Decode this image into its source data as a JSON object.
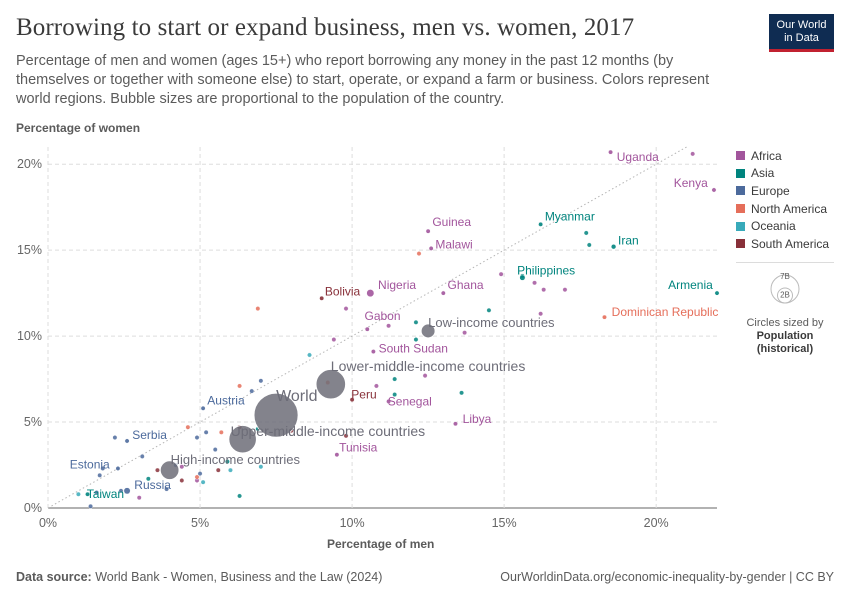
{
  "header": {
    "title": "Borrowing to start or expand business, men vs. women, 2017",
    "subtitle": "Percentage of men and women (ages 15+) who report borrowing any money in the past 12 months (by themselves or together with someone else) to start, operate, or expand a farm or business. Colors represent world regions. Bubble sizes are proportional to the population of the country.",
    "logo_line1": "Our World",
    "logo_line2": "in Data"
  },
  "colors": {
    "Africa": "#a2559c",
    "Asia": "#00847e",
    "Europe": "#4c6a9c",
    "North America": "#e56e5a",
    "Oceania": "#38aaba",
    "South America": "#883039",
    "Aggregate": "#6d6d78",
    "grid": "#dddddd",
    "axis": "#666666"
  },
  "legend": {
    "regions": [
      "Africa",
      "Asia",
      "Europe",
      "North America",
      "Oceania",
      "South America"
    ],
    "size_key_large": "7B",
    "size_key_small": "2B",
    "size_caption_1": "Circles sized by",
    "size_caption_2": "Population",
    "size_caption_3": "(historical)"
  },
  "footer": {
    "source_label": "Data source:",
    "source_text": "World Bank - Women, Business and the Law (2024)",
    "url": "OurWorldinData.org/economic-inequality-by-gender | CC BY"
  },
  "chart_data": {
    "type": "scatter",
    "title": "Borrowing to start or expand business, men vs. women, 2017",
    "xlabel": "Percentage of men",
    "ylabel": "Percentage of women",
    "xlim": [
      0,
      22
    ],
    "ylim": [
      0,
      21
    ],
    "xticks": [
      0,
      5,
      10,
      15,
      20
    ],
    "yticks": [
      0,
      5,
      10,
      15,
      20
    ],
    "xtick_labels": [
      "0%",
      "5%",
      "10%",
      "15%",
      "20%"
    ],
    "ytick_labels": [
      "0%",
      "5%",
      "10%",
      "15%",
      "20%"
    ],
    "reference_line": "y = x",
    "grid": true,
    "legend_position": "right",
    "labeled_points": [
      {
        "label": "Uganda",
        "region": "Africa",
        "x": 18.5,
        "y": 20.7,
        "pop": 0.04
      },
      {
        "label": "Kenya",
        "region": "Africa",
        "x": 21.9,
        "y": 18.5,
        "pop": 0.05
      },
      {
        "label": "Guinea",
        "region": "Africa",
        "x": 12.5,
        "y": 16.1,
        "pop": 0.012
      },
      {
        "label": "Malawi",
        "region": "Africa",
        "x": 12.6,
        "y": 15.1,
        "pop": 0.018
      },
      {
        "label": "Myanmar",
        "region": "Asia",
        "x": 16.2,
        "y": 16.5,
        "pop": 0.053
      },
      {
        "label": "Iran",
        "region": "Asia",
        "x": 18.6,
        "y": 15.2,
        "pop": 0.08
      },
      {
        "label": "Philippines",
        "region": "Asia",
        "x": 15.6,
        "y": 13.4,
        "pop": 0.105
      },
      {
        "label": "Armenia",
        "region": "Asia",
        "x": 22.0,
        "y": 12.5,
        "pop": 0.003
      },
      {
        "label": "Ghana",
        "region": "Africa",
        "x": 13.0,
        "y": 12.5,
        "pop": 0.029
      },
      {
        "label": "Nigeria",
        "region": "Africa",
        "x": 10.6,
        "y": 12.5,
        "pop": 0.19
      },
      {
        "label": "Bolivia",
        "region": "South America",
        "x": 9.0,
        "y": 12.2,
        "pop": 0.011
      },
      {
        "label": "Dominican Republic",
        "region": "North America",
        "x": 18.3,
        "y": 11.1,
        "pop": 0.011
      },
      {
        "label": "Gabon",
        "region": "Africa",
        "x": 10.5,
        "y": 10.4,
        "pop": 0.002
      },
      {
        "label": "South Sudan",
        "region": "Africa",
        "x": 10.7,
        "y": 9.1,
        "pop": 0.011
      },
      {
        "label": "Peru",
        "region": "South America",
        "x": 10.0,
        "y": 6.3,
        "pop": 0.032
      },
      {
        "label": "Senegal",
        "region": "Africa",
        "x": 11.2,
        "y": 6.2,
        "pop": 0.015
      },
      {
        "label": "Libya",
        "region": "Africa",
        "x": 13.4,
        "y": 4.9,
        "pop": 0.006
      },
      {
        "label": "Tunisia",
        "region": "Africa",
        "x": 9.5,
        "y": 3.1,
        "pop": 0.011
      },
      {
        "label": "Austria",
        "region": "Europe",
        "x": 5.1,
        "y": 5.8,
        "pop": 0.009
      },
      {
        "label": "Serbia",
        "region": "Europe",
        "x": 2.6,
        "y": 3.9,
        "pop": 0.007
      },
      {
        "label": "Estonia",
        "region": "Europe",
        "x": 2.3,
        "y": 2.3,
        "pop": 0.001
      },
      {
        "label": "Russia",
        "region": "Europe",
        "x": 2.6,
        "y": 1.0,
        "pop": 0.144
      },
      {
        "label": "Taiwan",
        "region": "Asia",
        "x": 1.3,
        "y": 0.8,
        "pop": 0.024
      }
    ],
    "aggregates": [
      {
        "label": "World",
        "x": 7.5,
        "y": 5.4,
        "pop": 7.5
      },
      {
        "label": "Lower-middle-income countries",
        "x": 9.3,
        "y": 7.2,
        "pop": 3.0
      },
      {
        "label": "Upper-middle-income countries",
        "x": 6.4,
        "y": 4.0,
        "pop": 2.6
      },
      {
        "label": "Low-income countries",
        "x": 12.5,
        "y": 10.3,
        "pop": 0.66
      },
      {
        "label": "High-income countries",
        "x": 4.0,
        "y": 2.2,
        "pop": 1.2
      }
    ],
    "other_points": [
      {
        "region": "Africa",
        "x": 21.2,
        "y": 20.6,
        "pop": 0.01
      },
      {
        "region": "Africa",
        "x": 14.9,
        "y": 13.6,
        "pop": 0.01
      },
      {
        "region": "Africa",
        "x": 16.0,
        "y": 13.1,
        "pop": 0.01
      },
      {
        "region": "Africa",
        "x": 16.3,
        "y": 12.7,
        "pop": 0.01
      },
      {
        "region": "Africa",
        "x": 17.0,
        "y": 12.7,
        "pop": 0.01
      },
      {
        "region": "Africa",
        "x": 16.2,
        "y": 11.3,
        "pop": 0.01
      },
      {
        "region": "Africa",
        "x": 9.8,
        "y": 11.6,
        "pop": 0.01
      },
      {
        "region": "Africa",
        "x": 11.2,
        "y": 10.6,
        "pop": 0.01
      },
      {
        "region": "Africa",
        "x": 13.7,
        "y": 10.2,
        "pop": 0.01
      },
      {
        "region": "Africa",
        "x": 9.4,
        "y": 9.8,
        "pop": 0.01
      },
      {
        "region": "Africa",
        "x": 12.4,
        "y": 7.7,
        "pop": 0.01
      },
      {
        "region": "Africa",
        "x": 10.8,
        "y": 7.1,
        "pop": 0.01
      },
      {
        "region": "Africa",
        "x": 4.4,
        "y": 2.4,
        "pop": 0.01
      },
      {
        "region": "Africa",
        "x": 4.9,
        "y": 1.6,
        "pop": 0.01
      },
      {
        "region": "Africa",
        "x": 3.0,
        "y": 0.6,
        "pop": 0.01
      },
      {
        "region": "Asia",
        "x": 17.7,
        "y": 16.0,
        "pop": 0.01
      },
      {
        "region": "Asia",
        "x": 17.8,
        "y": 15.3,
        "pop": 0.01
      },
      {
        "region": "Asia",
        "x": 15.6,
        "y": 13.5,
        "pop": 0.01
      },
      {
        "region": "Asia",
        "x": 14.5,
        "y": 11.5,
        "pop": 0.03
      },
      {
        "region": "Asia",
        "x": 12.1,
        "y": 10.8,
        "pop": 0.01
      },
      {
        "region": "Asia",
        "x": 12.1,
        "y": 9.8,
        "pop": 0.01
      },
      {
        "region": "Asia",
        "x": 13.6,
        "y": 6.7,
        "pop": 0.01
      },
      {
        "region": "Asia",
        "x": 11.4,
        "y": 7.5,
        "pop": 0.01
      },
      {
        "region": "Asia",
        "x": 11.4,
        "y": 6.6,
        "pop": 0.01
      },
      {
        "region": "Asia",
        "x": 6.9,
        "y": 4.6,
        "pop": 0.01
      },
      {
        "region": "Asia",
        "x": 5.9,
        "y": 2.7,
        "pop": 0.01
      },
      {
        "region": "Asia",
        "x": 3.3,
        "y": 1.7,
        "pop": 0.01
      },
      {
        "region": "Asia",
        "x": 6.3,
        "y": 0.7,
        "pop": 0.01
      },
      {
        "region": "Europe",
        "x": 7.0,
        "y": 7.4,
        "pop": 0.01
      },
      {
        "region": "Europe",
        "x": 6.7,
        "y": 6.8,
        "pop": 0.01
      },
      {
        "region": "Europe",
        "x": 2.2,
        "y": 4.1,
        "pop": 0.01
      },
      {
        "region": "Europe",
        "x": 5.2,
        "y": 4.4,
        "pop": 0.01
      },
      {
        "region": "Europe",
        "x": 4.9,
        "y": 4.1,
        "pop": 0.01
      },
      {
        "region": "Europe",
        "x": 5.5,
        "y": 3.4,
        "pop": 0.01
      },
      {
        "region": "Europe",
        "x": 3.1,
        "y": 3.0,
        "pop": 0.01
      },
      {
        "region": "Europe",
        "x": 1.8,
        "y": 2.3,
        "pop": 0.01
      },
      {
        "region": "Europe",
        "x": 4.2,
        "y": 2.5,
        "pop": 0.01
      },
      {
        "region": "Europe",
        "x": 5.0,
        "y": 2.0,
        "pop": 0.01
      },
      {
        "region": "Europe",
        "x": 1.7,
        "y": 1.9,
        "pop": 0.01
      },
      {
        "region": "Europe",
        "x": 2.4,
        "y": 1.0,
        "pop": 0.01
      },
      {
        "region": "Europe",
        "x": 3.9,
        "y": 1.1,
        "pop": 0.01
      },
      {
        "region": "Europe",
        "x": 1.6,
        "y": 0.9,
        "pop": 0.01
      },
      {
        "region": "Europe",
        "x": 1.4,
        "y": 0.1,
        "pop": 0.01
      },
      {
        "region": "North America",
        "x": 12.2,
        "y": 14.8,
        "pop": 0.01
      },
      {
        "region": "North America",
        "x": 6.9,
        "y": 11.6,
        "pop": 0.01
      },
      {
        "region": "North America",
        "x": 9.2,
        "y": 7.3,
        "pop": 0.01
      },
      {
        "region": "North America",
        "x": 6.3,
        "y": 7.1,
        "pop": 0.01
      },
      {
        "region": "North America",
        "x": 5.7,
        "y": 4.4,
        "pop": 0.01
      },
      {
        "region": "North America",
        "x": 4.6,
        "y": 4.7,
        "pop": 0.01
      },
      {
        "region": "North America",
        "x": 4.9,
        "y": 1.8,
        "pop": 0.01
      },
      {
        "region": "Oceania",
        "x": 8.6,
        "y": 8.9,
        "pop": 0.01
      },
      {
        "region": "Oceania",
        "x": 7.0,
        "y": 2.4,
        "pop": 0.01
      },
      {
        "region": "Oceania",
        "x": 6.0,
        "y": 2.2,
        "pop": 0.01
      },
      {
        "region": "Oceania",
        "x": 5.1,
        "y": 1.5,
        "pop": 0.01
      },
      {
        "region": "Oceania",
        "x": 1.0,
        "y": 0.8,
        "pop": 0.01
      },
      {
        "region": "South America",
        "x": 9.8,
        "y": 4.2,
        "pop": 0.01
      },
      {
        "region": "South America",
        "x": 8.0,
        "y": 4.5,
        "pop": 0.01
      },
      {
        "region": "South America",
        "x": 6.3,
        "y": 4.7,
        "pop": 0.01
      },
      {
        "region": "South America",
        "x": 5.6,
        "y": 2.2,
        "pop": 0.01
      },
      {
        "region": "South America",
        "x": 3.6,
        "y": 2.2,
        "pop": 0.01
      },
      {
        "region": "South America",
        "x": 4.4,
        "y": 1.6,
        "pop": 0.01
      }
    ]
  }
}
